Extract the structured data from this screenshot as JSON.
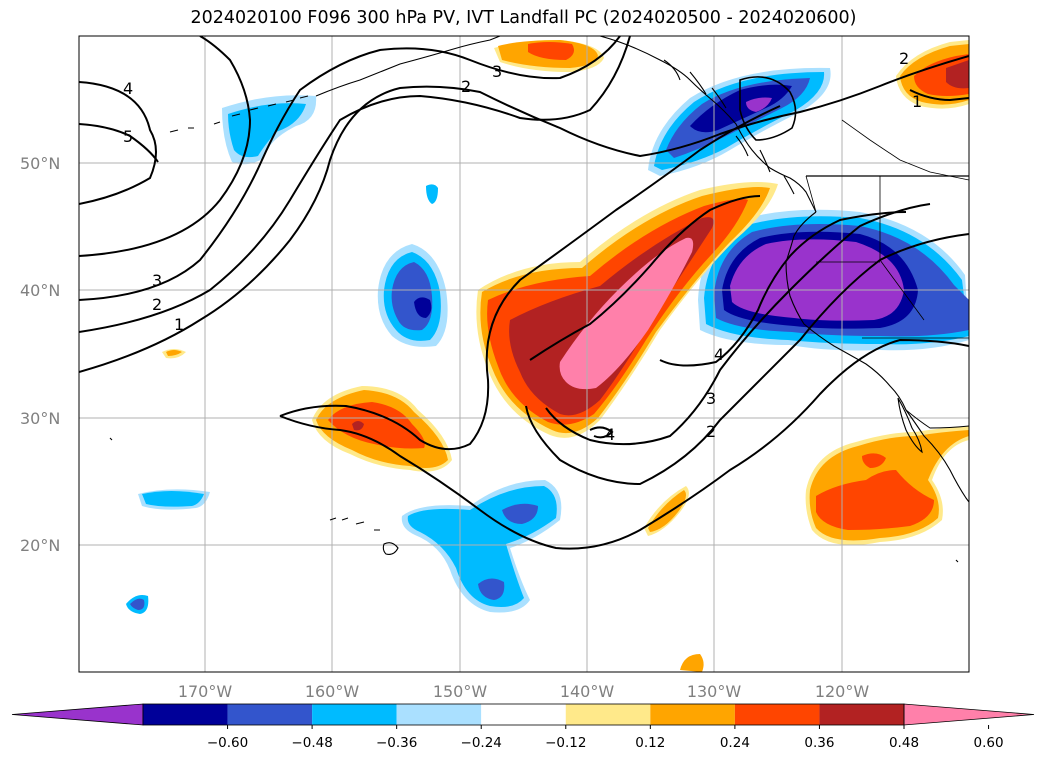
{
  "title": "2024020100 F096 300 hPa PV, IVT Landfall PC (2024020500 - 2024020600)",
  "lat_labels": [
    "50°N",
    "40°N",
    "30°N",
    "20°N"
  ],
  "lon_labels": [
    "170°W",
    "160°W",
    "150°W",
    "140°W",
    "130°W",
    "120°W"
  ],
  "colorbar": {
    "ticks": [
      "−0.60",
      "−0.48",
      "−0.36",
      "−0.24",
      "−0.12",
      "0.12",
      "0.24",
      "0.36",
      "0.48",
      "0.60"
    ],
    "colors": [
      "#9933cc",
      "#000099",
      "#3355cc",
      "#00bbff",
      "#aae0ff",
      "#ffffff",
      "#ffe98a",
      "#ffa500",
      "#ff4500",
      "#b22222",
      "#ff80aa"
    ]
  },
  "contour_labels": [
    "4",
    "5",
    "2",
    "3",
    "3",
    "2",
    "1",
    "4",
    "3",
    "2",
    "4",
    "2",
    "1"
  ],
  "colors": {
    "coast": "#000000",
    "grid": "#b0b0b0",
    "contour": "#000000"
  }
}
